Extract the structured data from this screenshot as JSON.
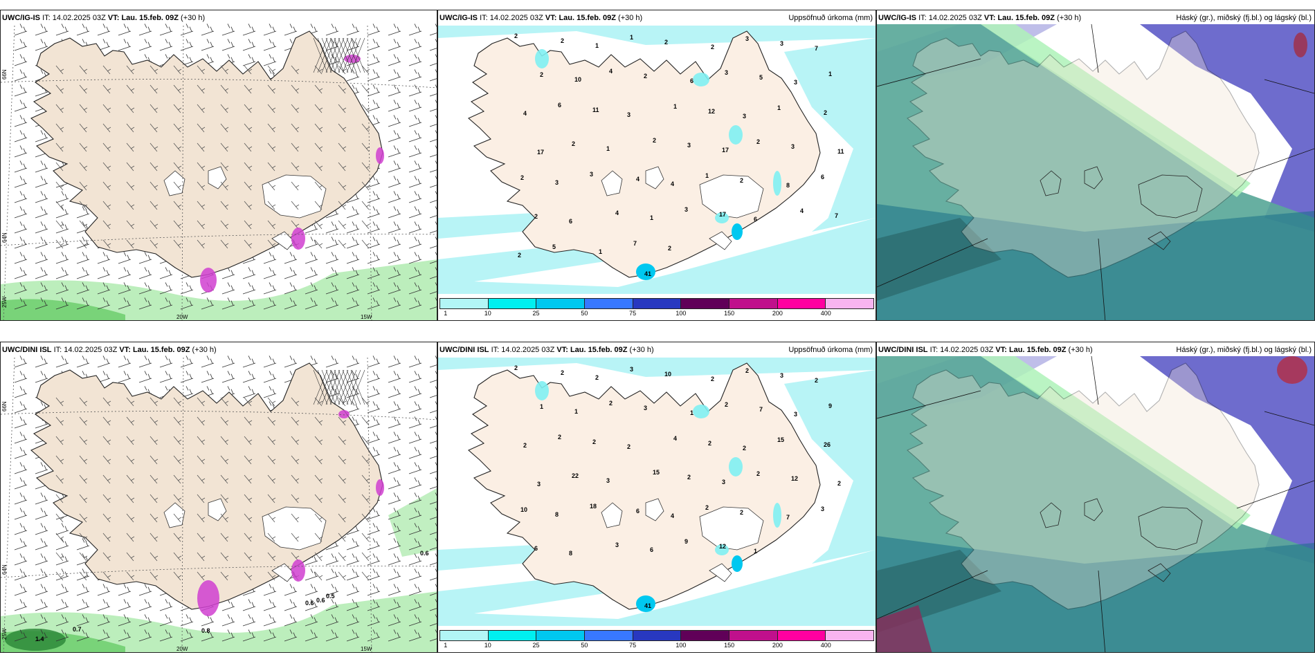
{
  "panels": [
    {
      "id": "p1",
      "model": "UWC/IG-IS",
      "kind": "wind",
      "it_label": "IT:",
      "it": "14.02.2025 03Z",
      "vt_label": "VT:",
      "vt": "Lau. 15.feb. 09Z",
      "lead": "(+30 h)",
      "title_right": "",
      "lat_labels": [
        "66N",
        "64N"
      ],
      "lon_labels": [
        "20W",
        "15W"
      ],
      "corner_lon": "25W",
      "values": []
    },
    {
      "id": "p2",
      "model": "UWC/IG-IS",
      "kind": "precip",
      "it_label": "IT:",
      "it": "14.02.2025 03Z",
      "vt_label": "VT:",
      "vt": "Lau. 15.feb. 09Z",
      "lead": "(+30 h)",
      "title_right": "Uppsöfnuð úrkoma (mm)",
      "values": [
        "2",
        "2",
        "1",
        "1",
        "2",
        "2",
        "3",
        "3",
        "7",
        "2",
        "10",
        "4",
        "2",
        "6",
        "3",
        "5",
        "3",
        "1",
        "4",
        "6",
        "11",
        "3",
        "1",
        "12",
        "3",
        "1",
        "2",
        "17",
        "2",
        "1",
        "2",
        "3",
        "17",
        "2",
        "3",
        "11",
        "2",
        "3",
        "3",
        "4",
        "4",
        "1",
        "2",
        "8",
        "6",
        "2",
        "6",
        "4",
        "1",
        "3",
        "17",
        "6",
        "4",
        "7",
        "2",
        "5",
        "1",
        "7",
        "2",
        "41"
      ]
    },
    {
      "id": "p3",
      "model": "UWC/IG-IS",
      "kind": "cloud",
      "it_label": "IT:",
      "it": "14.02.2025 03Z",
      "vt_label": "VT:",
      "vt": "Lau. 15.feb. 09Z",
      "lead": "(+30 h)",
      "title_right": "Háský (gr.), miðský (fj.bl.) og lágský (bl.)",
      "values": []
    },
    {
      "id": "p4",
      "model": "UWC/DINI ISL",
      "kind": "wind",
      "it_label": "IT:",
      "it": "14.02.2025 03Z",
      "vt_label": "VT:",
      "vt": "Lau. 15.feb. 09Z",
      "lead": "(+30 h)",
      "title_right": "",
      "lat_labels": [
        "66N",
        "64N"
      ],
      "lon_labels": [
        "20W",
        "15W"
      ],
      "corner_lon": "25W",
      "values": [
        "0.6",
        "0.8",
        "0.6",
        "0.6",
        "0.5",
        "0.7",
        "1.4"
      ]
    },
    {
      "id": "p5",
      "model": "UWC/DINI ISL",
      "kind": "precip",
      "it_label": "IT:",
      "it": "14.02.2025 03Z",
      "vt_label": "VT:",
      "vt": "Lau. 15.feb. 09Z",
      "lead": "(+30 h)",
      "title_right": "Uppsöfnuð úrkoma (mm)",
      "values": [
        "2",
        "2",
        "2",
        "3",
        "10",
        "2",
        "2",
        "3",
        "2",
        "1",
        "1",
        "2",
        "3",
        "1",
        "2",
        "7",
        "3",
        "9",
        "2",
        "2",
        "2",
        "2",
        "4",
        "2",
        "2",
        "15",
        "26",
        "3",
        "22",
        "3",
        "15",
        "2",
        "3",
        "2",
        "12",
        "2",
        "10",
        "8",
        "18",
        "6",
        "4",
        "2",
        "2",
        "7",
        "3",
        "6",
        "8",
        "3",
        "6",
        "9",
        "12",
        "1",
        "41"
      ]
    },
    {
      "id": "p6",
      "model": "UWC/DINI ISL",
      "kind": "cloud",
      "it_label": "IT:",
      "it": "14.02.2025 03Z",
      "vt_label": "VT:",
      "vt": "Lau. 15.feb. 09Z",
      "lead": "(+30 h)",
      "title_right": "Háský (gr.), miðský (fj.bl.) og lágský (bl.)",
      "values": []
    }
  ],
  "colorbar": {
    "ticks": [
      "1",
      "10",
      "25",
      "50",
      "75",
      "100",
      "150",
      "200",
      "400"
    ],
    "colors": [
      "#b2f6f6",
      "#00f0f0",
      "#00c8f0",
      "#3878ff",
      "#2838c0",
      "#600058",
      "#c0108c",
      "#ff00a0",
      "#f8b4f0"
    ]
  },
  "colors": {
    "land": "#f2e4d4",
    "land_light": "#fbefe4",
    "sea_precip": "#b8f4f6",
    "cloud_high": "#5aa899",
    "cloud_mid": "#5e5cc8",
    "cloud_low": "#1a6f88",
    "wind_sea_green": "#a6e8a6",
    "magenta": "#d040d0"
  }
}
